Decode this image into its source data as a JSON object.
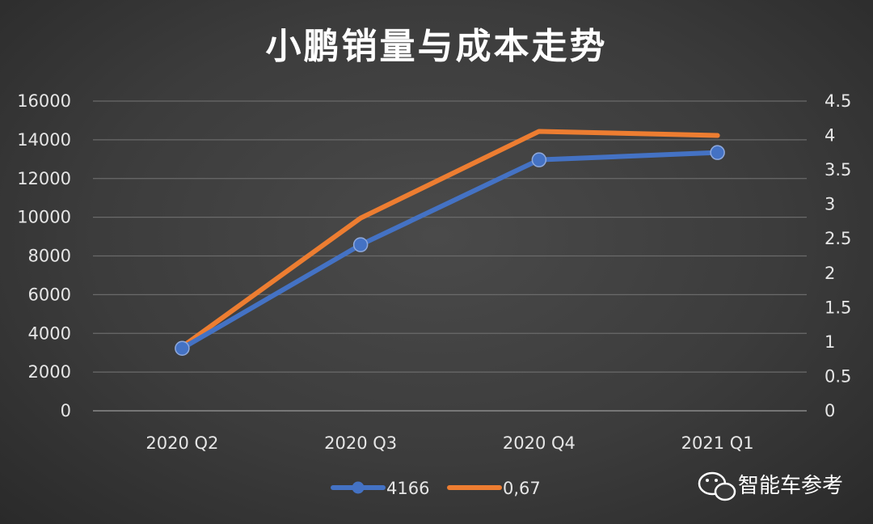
{
  "chart_data": {
    "type": "line",
    "title": "小鹏销量与成本走势",
    "categories": [
      "2020 Q2",
      "2020 Q3",
      "2020 Q4",
      "2021 Q1"
    ],
    "y_left": {
      "ticks": [
        "0",
        "2000",
        "4000",
        "6000",
        "8000",
        "10000",
        "12000",
        "14000",
        "16000"
      ],
      "range": [
        0,
        16000
      ]
    },
    "y_right": {
      "ticks": [
        "0",
        "0.5",
        "1",
        "1.5",
        "2",
        "2.5",
        "3",
        "3.5",
        "4",
        "4.5"
      ],
      "range": [
        0,
        4.5
      ]
    },
    "grid": true,
    "legend_position": "bottom",
    "series": [
      {
        "name": "4166",
        "axis": "left",
        "color": "#4472c4",
        "marker": "circle",
        "values": [
          3228,
          8578,
          12964,
          13340
        ]
      },
      {
        "name": "0,67",
        "axis": "right",
        "color": "#ed7d31",
        "marker": "none",
        "values": [
          0.93,
          2.8,
          4.06,
          4.0
        ]
      }
    ]
  },
  "watermark": {
    "text": "智能车参考",
    "icon": "wechat-icon"
  }
}
